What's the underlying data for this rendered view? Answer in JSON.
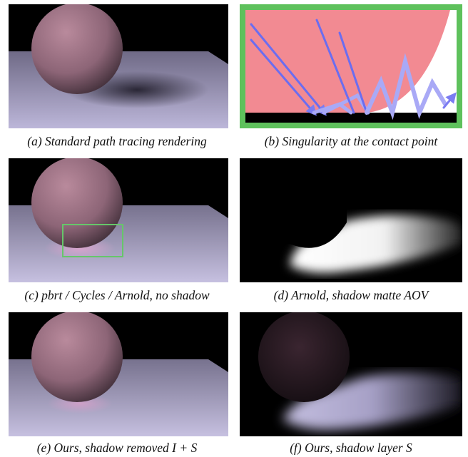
{
  "figure": {
    "captions": {
      "a": "(a) Standard path tracing rendering",
      "b": "(b) Singularity at the contact point",
      "c": "(c) pbrt / Cycles / Arnold, no shadow",
      "d": "(d) Arnold, shadow matte AOV",
      "e": "(e) Ours, shadow removed I + S",
      "f": "(f) Ours, shadow layer S"
    }
  }
}
